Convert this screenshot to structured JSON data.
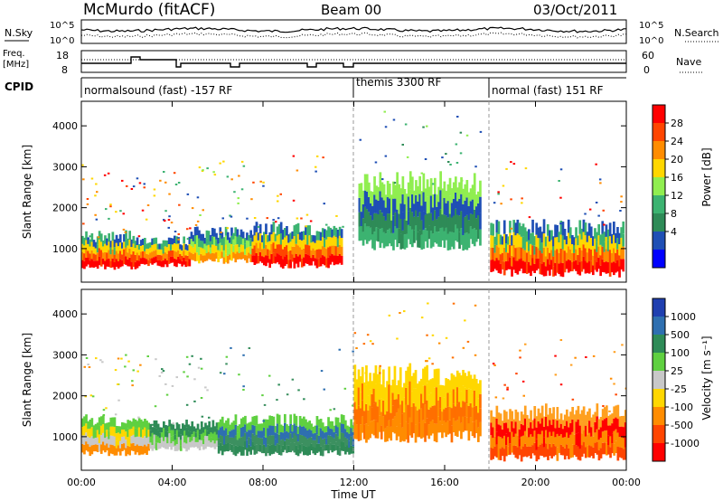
{
  "header": {
    "station": "McMurdo (fitACF)",
    "beam": "Beam 00",
    "date": "03/Oct/2011"
  },
  "strip_nsky": {
    "left_label": "N.Sky",
    "right_label": "N.Search",
    "ticks": [
      "10^5",
      "10^0"
    ]
  },
  "strip_freq": {
    "left_label_1": "Freq.",
    "left_label_2": "[MHz]",
    "right_label": "Nave",
    "left_ticks": [
      "18",
      "8"
    ],
    "right_ticks": [
      "60",
      "0"
    ]
  },
  "cpid": {
    "label": "CPID",
    "modes": [
      {
        "label": "normalsound (fast) -157 RF",
        "start_hour": 0,
        "end_hour": 12
      },
      {
        "label": "themis 3300 RF",
        "start_hour": 12,
        "end_hour": 18
      },
      {
        "label": "normal (fast) 151 RF",
        "start_hour": 18,
        "end_hour": 24
      }
    ]
  },
  "power_colorbar": {
    "label": "Power [dB]",
    "ticks": [
      "28",
      "24",
      "20",
      "16",
      "12",
      "8",
      "4"
    ],
    "colors": [
      "#ff0000",
      "#ff4500",
      "#ff8c00",
      "#ffd700",
      "#90ee50",
      "#3cb371",
      "#2e8b57",
      "#1f4fb5",
      "#0000ff"
    ]
  },
  "velocity_colorbar": {
    "label": "Velocity [m s⁻¹]",
    "ticks": [
      "1000",
      "500",
      "100",
      "25",
      "-25",
      "-100",
      "-500",
      "-1000"
    ],
    "colors": [
      "#1f3fb0",
      "#2e6fb0",
      "#2e8b57",
      "#5fd040",
      "#c8c8c8",
      "#ffd700",
      "#ff8c00",
      "#ff4500",
      "#ff0000"
    ]
  },
  "chart_data": [
    {
      "type": "heatmap",
      "panel": "power",
      "ylabel": "Slant Range [km]",
      "xlabel": "",
      "xlim": [
        0,
        24
      ],
      "ylim": [
        180,
        4600
      ],
      "yticks": [
        "1000",
        "2000",
        "3000",
        "4000"
      ],
      "x_ticks": [
        "00:00",
        "04:00",
        "08:00",
        "12:00",
        "16:00",
        "20:00",
        "00:00"
      ],
      "bands": [
        {
          "x0": 0.0,
          "x1": 2.5,
          "y0": 550,
          "y1": 1300,
          "level": "high"
        },
        {
          "x0": 2.5,
          "x1": 4.8,
          "y0": 600,
          "y1": 1200,
          "level": "high"
        },
        {
          "x0": 4.8,
          "x1": 7.5,
          "y0": 700,
          "y1": 1400,
          "level": "mid"
        },
        {
          "x0": 7.5,
          "x1": 11.5,
          "y0": 600,
          "y1": 1500,
          "level": "high"
        },
        {
          "x0": 12.2,
          "x1": 17.6,
          "y0": 1100,
          "y1": 2600,
          "level": "low"
        },
        {
          "x0": 18.0,
          "x1": 23.9,
          "y0": 400,
          "y1": 1500,
          "level": "high"
        }
      ]
    },
    {
      "type": "heatmap",
      "panel": "velocity",
      "ylabel": "Slant Range [km]",
      "xlabel": "Time UT",
      "xlim": [
        0,
        24
      ],
      "ylim": [
        180,
        4600
      ],
      "yticks": [
        "1000",
        "2000",
        "3000",
        "4000"
      ],
      "x_ticks": [
        "00:00",
        "04:00",
        "08:00",
        "12:00",
        "16:00",
        "20:00",
        "00:00"
      ],
      "bands": [
        {
          "x0": 0.0,
          "x1": 3.0,
          "y0": 600,
          "y1": 1400,
          "level": "orange-gray"
        },
        {
          "x0": 3.0,
          "x1": 6.0,
          "y0": 700,
          "y1": 1300,
          "level": "gray-green"
        },
        {
          "x0": 6.0,
          "x1": 12.0,
          "y0": 600,
          "y1": 1400,
          "level": "green"
        },
        {
          "x0": 12.0,
          "x1": 17.6,
          "y0": 1000,
          "y1": 2500,
          "level": "orange"
        },
        {
          "x0": 18.0,
          "x1": 24.0,
          "y0": 500,
          "y1": 1600,
          "level": "orange-red"
        }
      ]
    }
  ]
}
